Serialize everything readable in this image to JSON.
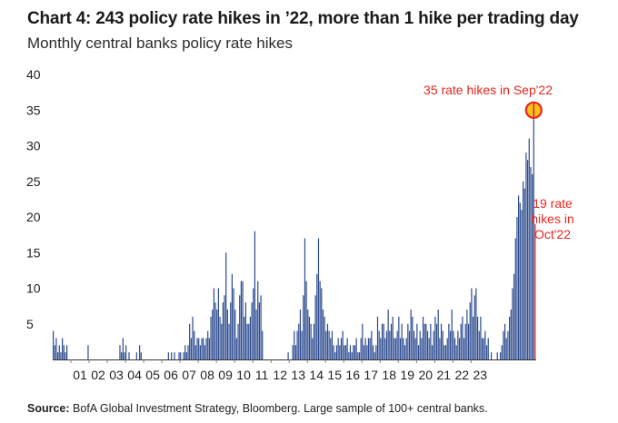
{
  "title": "Chart 4: 243 policy rate hikes in ’22, more than 1 hike per trading day",
  "subtitle": "Monthly central banks policy rate hikes",
  "source_label": "Source:",
  "source_text": "BofA Global Investment Strategy, Bloomberg. Large sample of 100+ central banks.",
  "colors": {
    "bar": "#2b4a8f",
    "highlight": "#e8271e",
    "marker_fill": "#f7c31a",
    "annotation": "#e8271e"
  },
  "chart_data": {
    "type": "bar",
    "title": "Monthly central banks policy rate hikes",
    "xlabel": "",
    "ylabel": "",
    "ylim": [
      0,
      40
    ],
    "yticks": [
      0,
      5,
      10,
      15,
      20,
      25,
      30,
      35,
      40
    ],
    "ytick_labels": [
      "",
      "5",
      "10",
      "15",
      "20",
      "25",
      "30",
      "35",
      "40"
    ],
    "year_labels": [
      "01",
      "02",
      "03",
      "04",
      "05",
      "06",
      "07",
      "08",
      "09",
      "10",
      "11",
      "12",
      "13",
      "14",
      "15",
      "16",
      "17",
      "18",
      "19",
      "20",
      "21",
      "22",
      "23"
    ],
    "start": "2000-01",
    "values": [
      4,
      2,
      3,
      1,
      2,
      1,
      3,
      2,
      1,
      2,
      0,
      0,
      0,
      0,
      0,
      0,
      0,
      0,
      0,
      0,
      0,
      0,
      0,
      2,
      0,
      0,
      0,
      0,
      0,
      0,
      0,
      0,
      0,
      0,
      0,
      0,
      0,
      0,
      0,
      0,
      0,
      0,
      0,
      0,
      2,
      1,
      3,
      1,
      2,
      0,
      1,
      0,
      0,
      0,
      0,
      1,
      0,
      2,
      1,
      0,
      0,
      0,
      0,
      0,
      0,
      0,
      0,
      0,
      0,
      0,
      0,
      0,
      0,
      0,
      0,
      0,
      1,
      0,
      1,
      0,
      1,
      0,
      0,
      1,
      1,
      0,
      1,
      2,
      1,
      2,
      5,
      3,
      6,
      4,
      2,
      3,
      3,
      2,
      3,
      3,
      2,
      3,
      4,
      3,
      6,
      7,
      10,
      8,
      7,
      10,
      6,
      5,
      8,
      9,
      15,
      7,
      5,
      8,
      12,
      10,
      7,
      3,
      5,
      9,
      11,
      11,
      6,
      8,
      5,
      5,
      6,
      8,
      10,
      18,
      7,
      11,
      8,
      9,
      4,
      0,
      0,
      0,
      0,
      0,
      0,
      0,
      0,
      0,
      0,
      0,
      0,
      0,
      0,
      0,
      0,
      1,
      0,
      0,
      2,
      4,
      2,
      4,
      5,
      7,
      4,
      9,
      17,
      11,
      7,
      6,
      5,
      3,
      5,
      9,
      12,
      17,
      11,
      10,
      7,
      6,
      4,
      5,
      4,
      3,
      4,
      2,
      1,
      2,
      3,
      2,
      3,
      4,
      2,
      2,
      3,
      1,
      2,
      1,
      2,
      2,
      3,
      1,
      1,
      3,
      5,
      2,
      3,
      2,
      3,
      3,
      4,
      2,
      1,
      2,
      6,
      4,
      3,
      5,
      5,
      3,
      4,
      7,
      4,
      5,
      6,
      3,
      3,
      4,
      6,
      3,
      5,
      3,
      2,
      3,
      5,
      4,
      7,
      6,
      4,
      3,
      5,
      2,
      4,
      3,
      6,
      5,
      5,
      4,
      3,
      5,
      2,
      4,
      6,
      5,
      7,
      3,
      5,
      4,
      2,
      2,
      3,
      5,
      4,
      7,
      4,
      3,
      2,
      4,
      3,
      5,
      6,
      3,
      5,
      7,
      5,
      8,
      10,
      6,
      9,
      10,
      6,
      4,
      6,
      3,
      3,
      4,
      2,
      3,
      0,
      1,
      0,
      0,
      0,
      1,
      0,
      1,
      2,
      4,
      5,
      3,
      4,
      6,
      7,
      10,
      12,
      17,
      20,
      23,
      22,
      21,
      25,
      24,
      29,
      28,
      31,
      27,
      26,
      35,
      19
    ]
  },
  "annotations": {
    "sep22": "35 rate hikes in Sep'22",
    "oct22_line1": "19 rate",
    "oct22_line2": "hikes in",
    "oct22_line3": "Oct'22"
  }
}
